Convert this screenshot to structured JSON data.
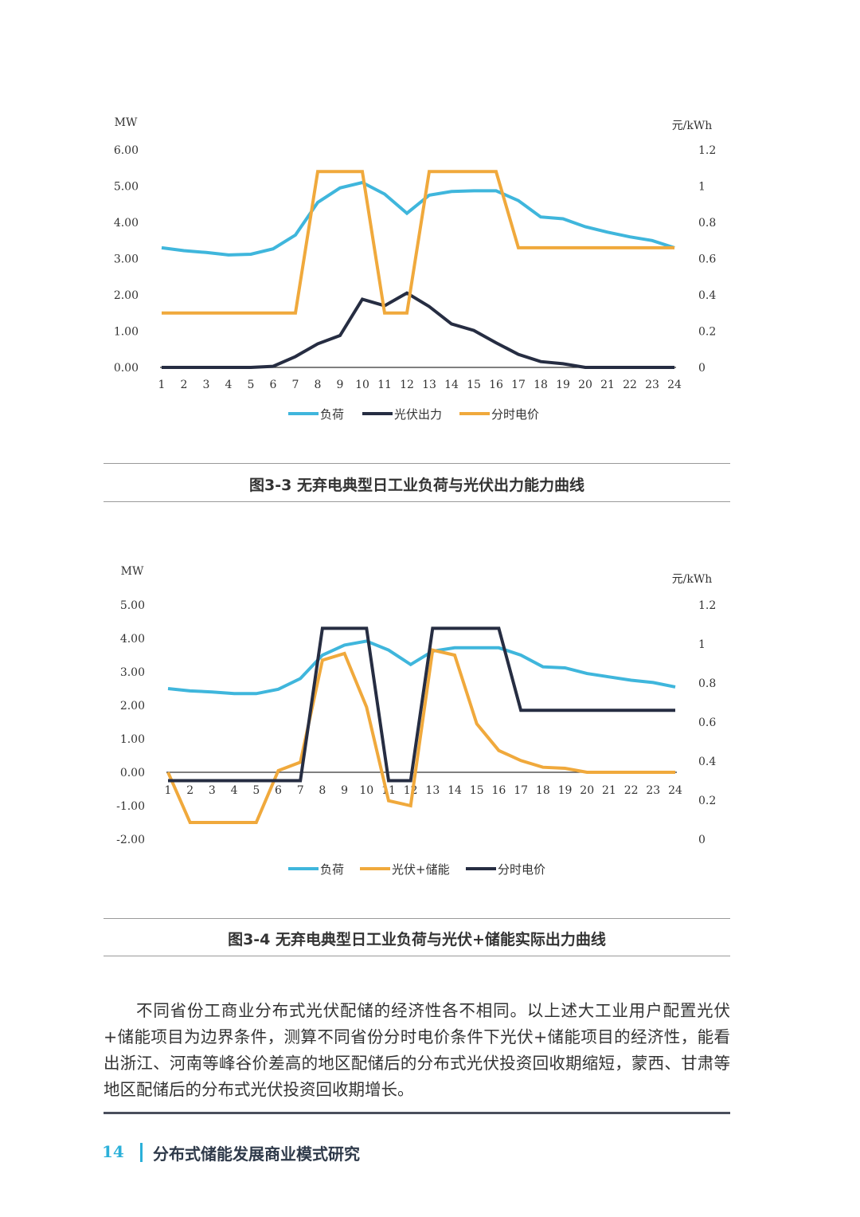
{
  "chart_data": [
    {
      "type": "line",
      "title": "图3-3 无弃电典型日工业负荷与光伏出力能力曲线",
      "ylabel": "MW",
      "y2label": "元/kWh",
      "ylim": [
        0,
        6
      ],
      "y2lim": [
        0,
        1.2
      ],
      "yticks": [
        "0.00",
        "1.00",
        "2.00",
        "3.00",
        "4.00",
        "5.00",
        "6.00"
      ],
      "y2ticks": [
        "0",
        "0.2",
        "0.4",
        "0.6",
        "0.8",
        "1",
        "1.2"
      ],
      "categories": [
        "1",
        "2",
        "3",
        "4",
        "5",
        "6",
        "7",
        "8",
        "9",
        "10",
        "11",
        "12",
        "13",
        "14",
        "15",
        "16",
        "17",
        "18",
        "19",
        "20",
        "21",
        "22",
        "23",
        "24"
      ],
      "legend_position": "bottom",
      "series": [
        {
          "name": "负荷",
          "axis": "left",
          "color": "#3fb6dc",
          "values": [
            3.3,
            3.22,
            3.17,
            3.1,
            3.12,
            3.27,
            3.65,
            4.55,
            4.95,
            5.1,
            4.78,
            4.25,
            4.75,
            4.85,
            4.87,
            4.87,
            4.6,
            4.15,
            4.1,
            3.88,
            3.73,
            3.6,
            3.5,
            3.3
          ]
        },
        {
          "name": "光伏出力",
          "axis": "left",
          "color": "#262d42",
          "values": [
            0,
            0,
            0,
            0,
            0,
            0.03,
            0.3,
            0.65,
            0.88,
            1.88,
            1.7,
            2.05,
            1.68,
            1.2,
            1.02,
            0.68,
            0.36,
            0.16,
            0.1,
            0,
            0,
            0,
            0,
            0
          ]
        },
        {
          "name": "分时电价",
          "axis": "right",
          "color": "#f0a93c",
          "values": [
            0.3,
            0.3,
            0.3,
            0.3,
            0.3,
            0.3,
            0.3,
            1.08,
            1.08,
            1.08,
            0.3,
            0.3,
            1.08,
            1.08,
            1.08,
            1.08,
            0.66,
            0.66,
            0.66,
            0.66,
            0.66,
            0.66,
            0.66,
            0.66
          ]
        }
      ]
    },
    {
      "type": "line",
      "title": "图3-4 无弃电典型日工业负荷与光伏+储能实际出力曲线",
      "ylabel": "MW",
      "y2label": "元/kWh",
      "ylim": [
        -2,
        5
      ],
      "y2lim": [
        0,
        1.2
      ],
      "yticks": [
        "-2.00",
        "-1.00",
        "0.00",
        "1.00",
        "2.00",
        "3.00",
        "4.00",
        "5.00"
      ],
      "y2ticks": [
        "0",
        "0.2",
        "0.4",
        "0.6",
        "0.8",
        "1",
        "1.2"
      ],
      "categories": [
        "1",
        "2",
        "3",
        "4",
        "5",
        "6",
        "7",
        "8",
        "9",
        "10",
        "11",
        "12",
        "13",
        "14",
        "15",
        "16",
        "17",
        "18",
        "19",
        "20",
        "21",
        "22",
        "23",
        "24"
      ],
      "legend_position": "bottom",
      "series": [
        {
          "name": "负荷",
          "axis": "left",
          "color": "#3fb6dc",
          "values": [
            2.5,
            2.43,
            2.4,
            2.35,
            2.35,
            2.48,
            2.8,
            3.5,
            3.8,
            3.92,
            3.65,
            3.22,
            3.62,
            3.72,
            3.72,
            3.72,
            3.5,
            3.15,
            3.12,
            2.95,
            2.85,
            2.75,
            2.68,
            2.55
          ]
        },
        {
          "name": "光伏+储能",
          "axis": "left",
          "color": "#f0a93c",
          "values": [
            0,
            -1.5,
            -1.5,
            -1.5,
            -1.5,
            0.05,
            0.3,
            3.35,
            3.55,
            1.95,
            -0.85,
            -1.0,
            3.65,
            3.5,
            1.45,
            0.65,
            0.35,
            0.15,
            0.12,
            0,
            0,
            0,
            0,
            0
          ]
        },
        {
          "name": "分时电价",
          "axis": "right",
          "color": "#262d42",
          "values": [
            0.3,
            0.3,
            0.3,
            0.3,
            0.3,
            0.3,
            0.3,
            1.08,
            1.08,
            1.08,
            0.3,
            0.3,
            1.08,
            1.08,
            1.08,
            1.08,
            0.66,
            0.66,
            0.66,
            0.66,
            0.66,
            0.66,
            0.66,
            0.66
          ]
        }
      ]
    }
  ],
  "captions": {
    "fig1": "图3-3  无弃电典型日工业负荷与光伏出力能力曲线",
    "fig2": "图3-4  无弃电典型日工业负荷与光伏+储能实际出力曲线"
  },
  "body_text": "不同省份工商业分布式光伏配储的经济性各不相同。以上述大工业用户配置光伏+储能项目为边界条件，测算不同省份分时电价条件下光伏+储能项目的经济性，能看出浙江、河南等峰谷价差高的地区配储后的分布式光伏投资回收期缩短，蒙西、甘肃等地区配储后的分布式光伏投资回收期增长。",
  "footer": {
    "page_number": "14",
    "title": "分布式储能发展商业模式研究"
  }
}
